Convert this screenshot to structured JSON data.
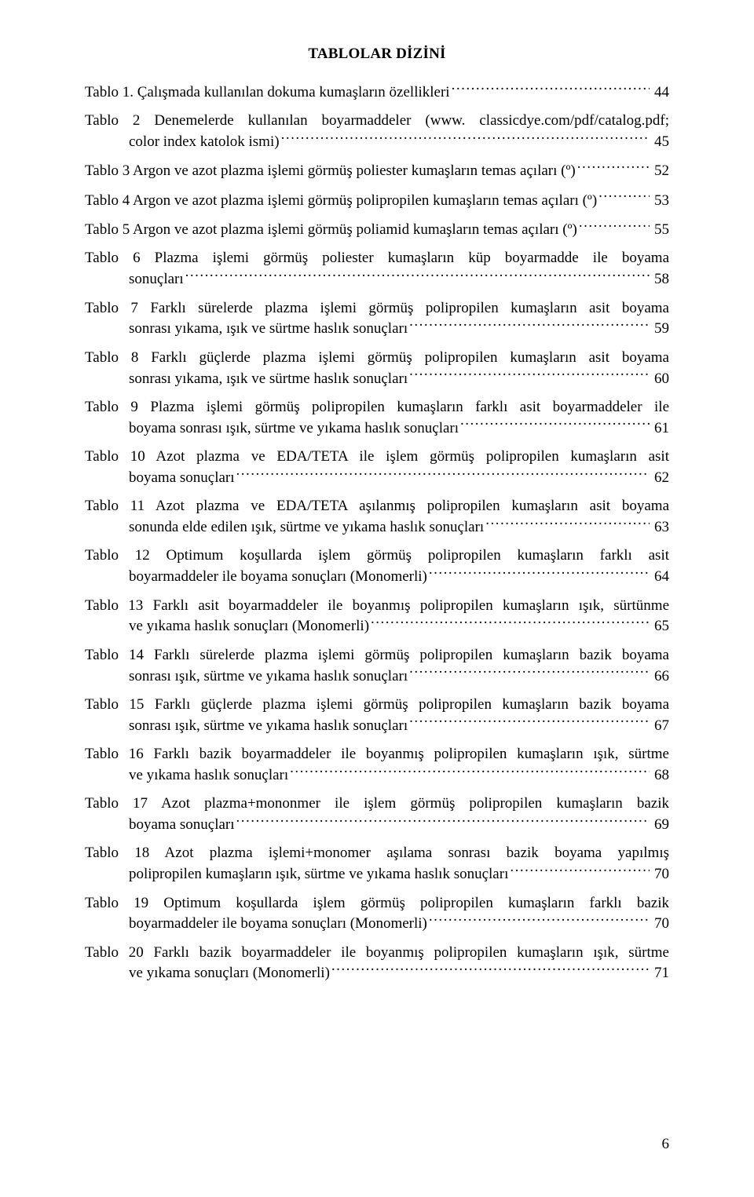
{
  "heading": "TABLOLAR DİZİNİ",
  "page_number": "6",
  "entries": [
    {
      "hanging": false,
      "runs": [],
      "tail": "Tablo 1. Çalışmada kullanılan dokuma kumaşların özellikleri",
      "page": "44"
    },
    {
      "hanging": true,
      "runs": [
        "Tablo 2 Denemelerde kullanılan boyarmaddeler (www. classicdye.com/pdf/catalog.pdf;"
      ],
      "tail": "color index katolok ismi)",
      "page": "45"
    },
    {
      "hanging": false,
      "runs": [],
      "tail": "Tablo 3 Argon ve azot plazma işlemi görmüş poliester kumaşların temas açıları (º)",
      "page": "52"
    },
    {
      "hanging": false,
      "runs": [],
      "tail": "Tablo 4 Argon ve azot plazma işlemi görmüş polipropilen kumaşların temas açıları (º)",
      "page": "53"
    },
    {
      "hanging": false,
      "runs": [],
      "tail": "Tablo 5 Argon ve azot plazma işlemi görmüş poliamid kumaşların temas açıları (º)",
      "page": "55"
    },
    {
      "hanging": true,
      "runs": [
        "Tablo 6 Plazma işlemi görmüş poliester kumaşların küp boyarmadde ile boyama"
      ],
      "tail": "sonuçları",
      "page": "58"
    },
    {
      "hanging": true,
      "runs": [
        "Tablo 7 Farklı sürelerde plazma işlemi görmüş polipropilen kumaşların asit boyama"
      ],
      "tail": "sonrası yıkama, ışık ve sürtme haslık sonuçları",
      "page": "59"
    },
    {
      "hanging": true,
      "runs": [
        "Tablo 8 Farklı güçlerde plazma işlemi görmüş polipropilen kumaşların asit boyama"
      ],
      "tail": "sonrası yıkama, ışık ve sürtme haslık sonuçları",
      "page": "60"
    },
    {
      "hanging": true,
      "runs": [
        "Tablo 9 Plazma işlemi görmüş polipropilen kumaşların farklı asit boyarmaddeler ile"
      ],
      "tail": "boyama sonrası ışık, sürtme ve yıkama haslık sonuçları",
      "page": "61"
    },
    {
      "hanging": true,
      "runs": [
        "Tablo 10 Azot plazma ve EDA/TETA ile işlem görmüş polipropilen kumaşların asit"
      ],
      "tail": "boyama sonuçları",
      "page": "62"
    },
    {
      "hanging": true,
      "runs": [
        "Tablo 11 Azot plazma ve EDA/TETA aşılanmış polipropilen kumaşların asit boyama"
      ],
      "tail": "sonunda elde edilen ışık, sürtme ve yıkama haslık sonuçları",
      "page": "63"
    },
    {
      "hanging": true,
      "runs": [
        "Tablo 12 Optimum koşullarda işlem görmüş polipropilen kumaşların farklı asit"
      ],
      "tail": "boyarmaddeler ile boyama sonuçları (Monomerli)",
      "page": "64"
    },
    {
      "hanging": true,
      "runs": [
        "Tablo 13 Farklı asit boyarmaddeler ile boyanmış polipropilen kumaşların ışık, sürtünme"
      ],
      "tail": "ve yıkama haslık sonuçları (Monomerli)",
      "page": "65"
    },
    {
      "hanging": true,
      "runs": [
        "Tablo 14 Farklı sürelerde plazma işlemi görmüş polipropilen kumaşların bazik boyama"
      ],
      "tail": "sonrası ışık, sürtme ve yıkama haslık sonuçları",
      "page": "66"
    },
    {
      "hanging": true,
      "runs": [
        "Tablo 15 Farklı güçlerde plazma işlemi görmüş polipropilen kumaşların bazik boyama"
      ],
      "tail": "sonrası ışık, sürtme ve yıkama haslık sonuçları",
      "page": "67"
    },
    {
      "hanging": true,
      "runs": [
        "Tablo 16 Farklı bazik boyarmaddeler ile boyanmış polipropilen kumaşların ışık, sürtme"
      ],
      "tail": "ve yıkama haslık sonuçları",
      "page": "68"
    },
    {
      "hanging": true,
      "runs": [
        "Tablo 17 Azot plazma+mononmer ile işlem görmüş polipropilen kumaşların bazik"
      ],
      "tail": "boyama sonuçları",
      "page": "69"
    },
    {
      "hanging": true,
      "runs": [
        "Tablo 18 Azot plazma işlemi+monomer aşılama sonrası bazik boyama yapılmış"
      ],
      "tail": "polipropilen kumaşların ışık, sürtme ve yıkama haslık sonuçları",
      "page": "70"
    },
    {
      "hanging": true,
      "runs": [
        "Tablo 19 Optimum koşullarda işlem görmüş polipropilen kumaşların farklı bazik"
      ],
      "tail": "boyarmaddeler ile boyama sonuçları (Monomerli)",
      "page": "70"
    },
    {
      "hanging": true,
      "runs": [
        "Tablo 20 Farklı bazik boyarmaddeler ile boyanmış polipropilen kumaşların ışık, sürtme"
      ],
      "tail": "ve yıkama sonuçları (Monomerli)",
      "page": "71"
    }
  ]
}
